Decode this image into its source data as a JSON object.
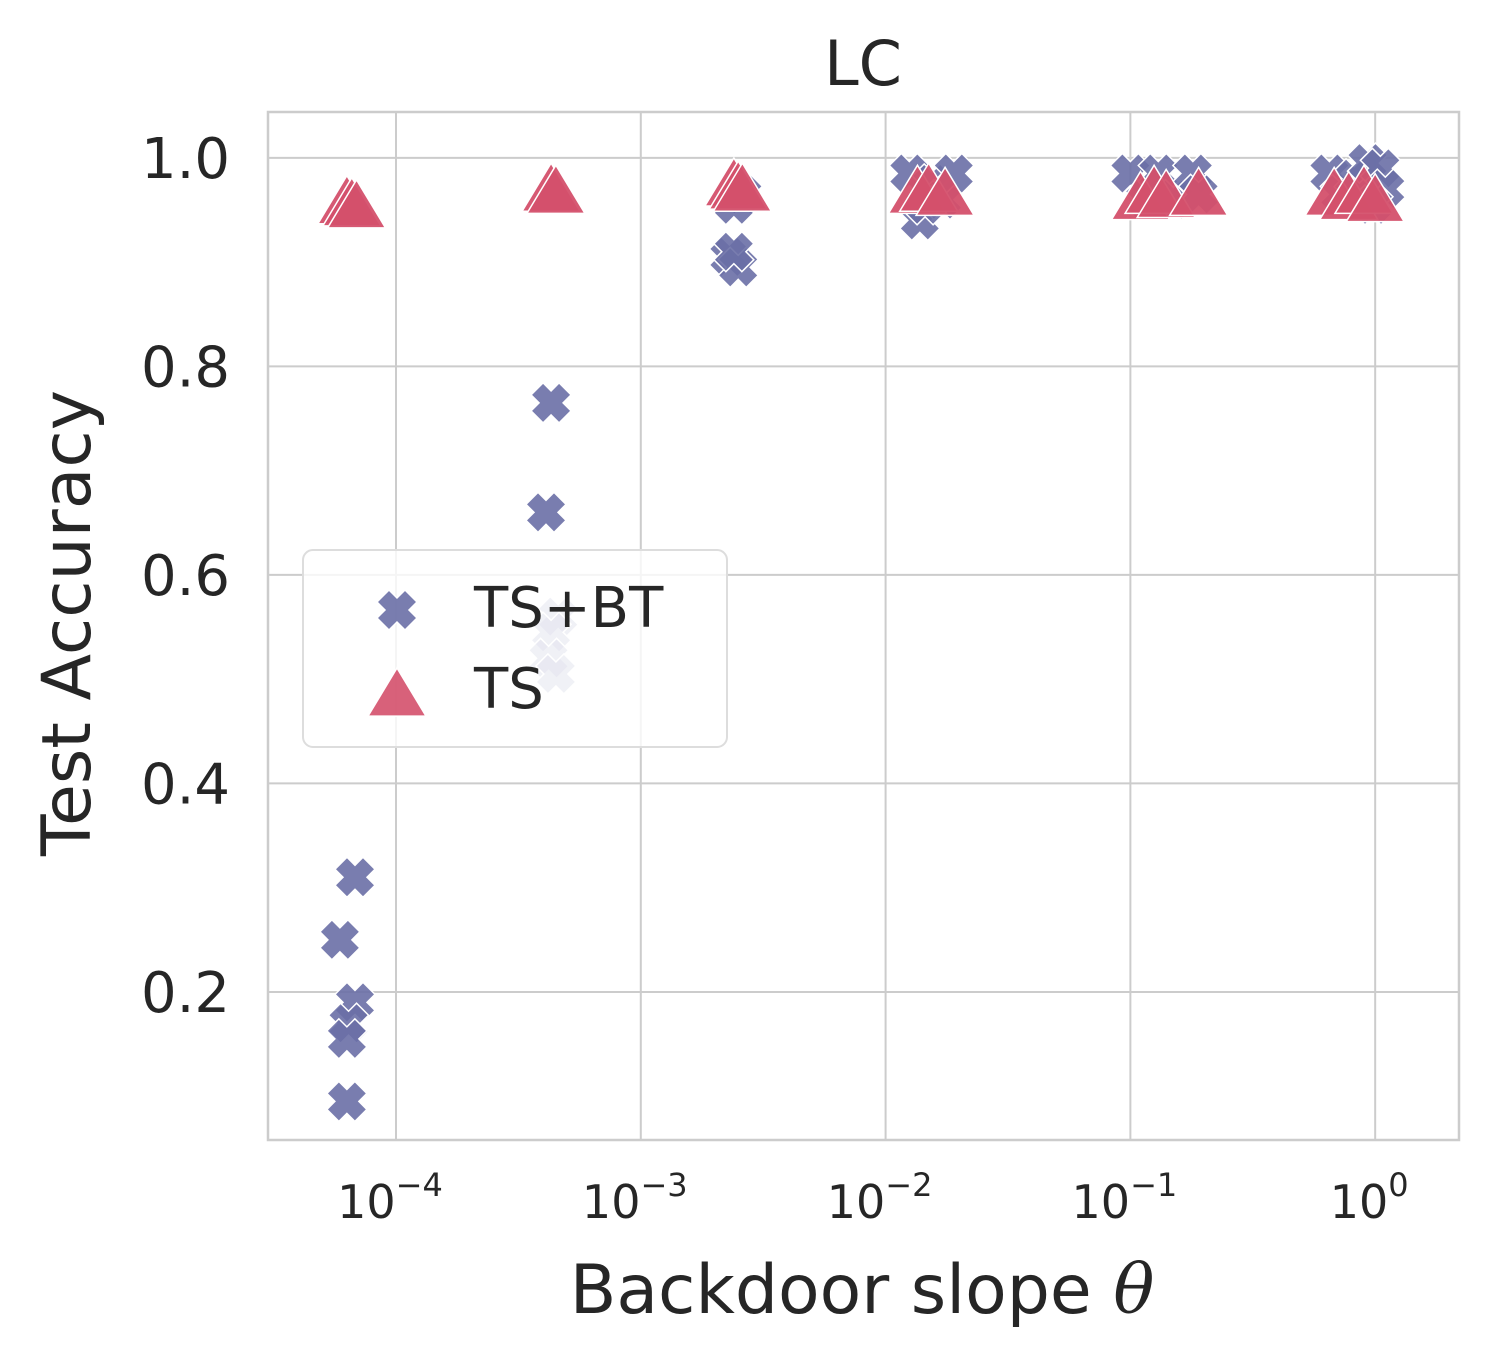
{
  "chart_data": {
    "type": "scatter",
    "title": "LC",
    "xlabel_main": "Backdoor slope ",
    "xlabel_symbol": "θ",
    "ylabel": "Test Accuracy",
    "xscale": "log",
    "xlim": [
      3e-05,
      2.2
    ],
    "ylim": [
      0.058,
      1.044
    ],
    "grid": true,
    "xticks": [
      {
        "value": 0.0001,
        "base": "10",
        "exp": "−4"
      },
      {
        "value": 0.001,
        "base": "10",
        "exp": "−3"
      },
      {
        "value": 0.01,
        "base": "10",
        "exp": "−2"
      },
      {
        "value": 0.1,
        "base": "10",
        "exp": "−1"
      },
      {
        "value": 1,
        "base": "10",
        "exp": "0"
      }
    ],
    "yticks": [
      {
        "value": 0.2,
        "label": "0.2"
      },
      {
        "value": 0.4,
        "label": "0.4"
      },
      {
        "value": 0.6,
        "label": "0.6"
      },
      {
        "value": 0.8,
        "label": "0.8"
      },
      {
        "value": 1.0,
        "label": "1.0"
      }
    ],
    "legend": {
      "position": "center-left"
    },
    "series": [
      {
        "name": "TS+BT",
        "marker": "X",
        "color": "#6a6fa6",
        "points": [
          {
            "x": 6.8e-05,
            "y": 0.31,
            "alpha": 0.9
          },
          {
            "x": 5.9e-05,
            "y": 0.25,
            "alpha": 0.9
          },
          {
            "x": 6.8e-05,
            "y": 0.19,
            "alpha": 0.9
          },
          {
            "x": 6.4e-05,
            "y": 0.17,
            "alpha": 0.9
          },
          {
            "x": 6.3e-05,
            "y": 0.155,
            "alpha": 0.9
          },
          {
            "x": 6.3e-05,
            "y": 0.095,
            "alpha": 0.9
          },
          {
            "x": 0.00043,
            "y": 0.765,
            "alpha": 0.9
          },
          {
            "x": 0.00041,
            "y": 0.66,
            "alpha": 0.9
          },
          {
            "x": 0.00046,
            "y": 0.56,
            "alpha": 0.5
          },
          {
            "x": 0.00043,
            "y": 0.545,
            "alpha": 0.5
          },
          {
            "x": 0.00042,
            "y": 0.52,
            "alpha": 0.5
          },
          {
            "x": 0.00045,
            "y": 0.505,
            "alpha": 0.5
          },
          {
            "x": 0.0023,
            "y": 0.905,
            "alpha": 0.9
          },
          {
            "x": 0.0025,
            "y": 0.895,
            "alpha": 0.9
          },
          {
            "x": 0.0024,
            "y": 0.91,
            "alpha": 0.9
          },
          {
            "x": 0.0026,
            "y": 0.965,
            "alpha": 0.9
          },
          {
            "x": 0.0024,
            "y": 0.955,
            "alpha": 0.9
          },
          {
            "x": 0.0125,
            "y": 0.985,
            "alpha": 0.9
          },
          {
            "x": 0.0138,
            "y": 0.94,
            "alpha": 0.9
          },
          {
            "x": 0.0155,
            "y": 0.975,
            "alpha": 0.9
          },
          {
            "x": 0.017,
            "y": 0.96,
            "alpha": 0.9
          },
          {
            "x": 0.019,
            "y": 0.985,
            "alpha": 0.9
          },
          {
            "x": 0.0145,
            "y": 0.955,
            "alpha": 0.9
          },
          {
            "x": 0.1,
            "y": 0.985,
            "alpha": 0.9
          },
          {
            "x": 0.115,
            "y": 0.96,
            "alpha": 0.9
          },
          {
            "x": 0.13,
            "y": 0.985,
            "alpha": 0.9
          },
          {
            "x": 0.15,
            "y": 0.96,
            "alpha": 0.9
          },
          {
            "x": 0.18,
            "y": 0.985,
            "alpha": 0.9
          },
          {
            "x": 0.19,
            "y": 0.965,
            "alpha": 0.9
          },
          {
            "x": 0.65,
            "y": 0.985,
            "alpha": 0.9
          },
          {
            "x": 0.72,
            "y": 0.965,
            "alpha": 0.9
          },
          {
            "x": 0.82,
            "y": 0.98,
            "alpha": 0.9
          },
          {
            "x": 0.93,
            "y": 0.995,
            "alpha": 0.9
          },
          {
            "x": 1.05,
            "y": 0.99,
            "alpha": 0.9
          },
          {
            "x": 1.1,
            "y": 0.97,
            "alpha": 0.9
          },
          {
            "x": 0.98,
            "y": 0.955,
            "alpha": 0.9
          }
        ]
      },
      {
        "name": "TS",
        "marker": "triangle",
        "color": "#d4506b",
        "points": [
          {
            "x": 6.3e-05,
            "y": 0.958,
            "alpha": 0.95
          },
          {
            "x": 6.6e-05,
            "y": 0.956,
            "alpha": 0.95
          },
          {
            "x": 6.9e-05,
            "y": 0.954,
            "alpha": 0.95
          },
          {
            "x": 0.00043,
            "y": 0.97,
            "alpha": 0.95
          },
          {
            "x": 0.00045,
            "y": 0.968,
            "alpha": 0.95
          },
          {
            "x": 0.0024,
            "y": 0.975,
            "alpha": 0.95
          },
          {
            "x": 0.0025,
            "y": 0.972,
            "alpha": 0.95
          },
          {
            "x": 0.0026,
            "y": 0.97,
            "alpha": 0.95
          },
          {
            "x": 0.0135,
            "y": 0.968,
            "alpha": 0.95
          },
          {
            "x": 0.015,
            "y": 0.97,
            "alpha": 0.95
          },
          {
            "x": 0.0175,
            "y": 0.966,
            "alpha": 0.95
          },
          {
            "x": 0.11,
            "y": 0.962,
            "alpha": 0.95
          },
          {
            "x": 0.125,
            "y": 0.968,
            "alpha": 0.95
          },
          {
            "x": 0.14,
            "y": 0.964,
            "alpha": 0.95
          },
          {
            "x": 0.19,
            "y": 0.966,
            "alpha": 0.95
          },
          {
            "x": 0.68,
            "y": 0.966,
            "alpha": 0.95
          },
          {
            "x": 0.78,
            "y": 0.962,
            "alpha": 0.95
          },
          {
            "x": 0.9,
            "y": 0.968,
            "alpha": 0.95
          },
          {
            "x": 1.0,
            "y": 0.96,
            "alpha": 0.95
          }
        ]
      }
    ]
  }
}
